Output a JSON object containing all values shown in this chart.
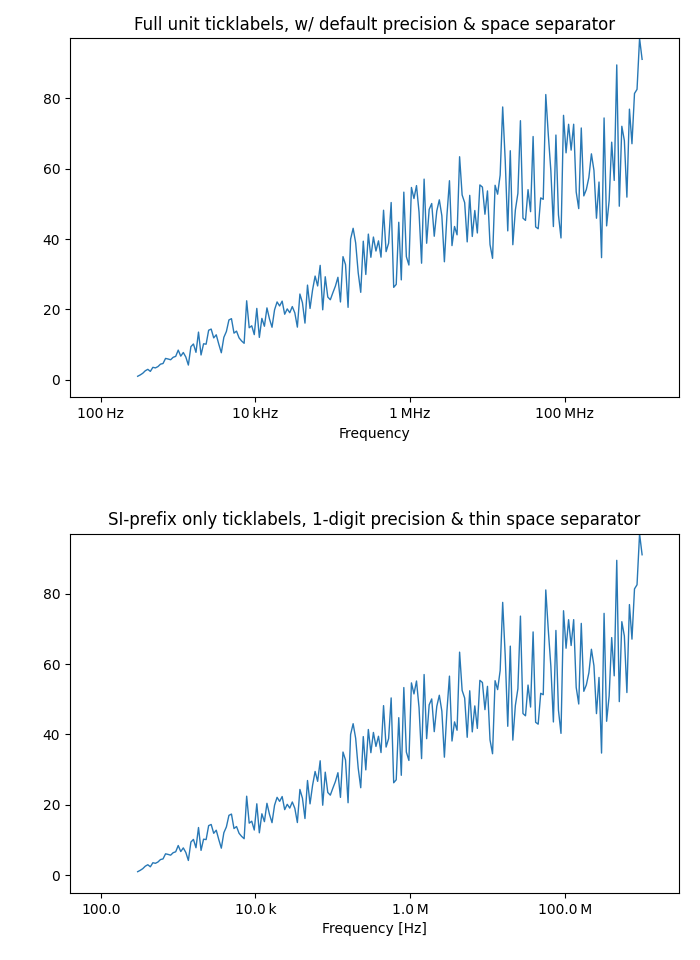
{
  "title1": "Full unit ticklabels, w/ default precision & space separator",
  "title2": "SI-prefix only ticklabels, 1-digit precision & thin space separator",
  "xlabel1": "Frequency",
  "xlabel2": "Frequency [Hz]",
  "line_color": "#2878b5",
  "xmin": 300.0,
  "xmax": 1000000000.0,
  "seed": 0,
  "n_points": 200,
  "ticks": [
    100,
    10000,
    1000000,
    100000000
  ],
  "ticklabels1": [
    "100 Hz",
    "10 kHz",
    "1 MHz",
    "100 MHz"
  ],
  "ticklabels2": [
    "100.0",
    "10.0 k",
    "1.0 M",
    "100.0 M"
  ]
}
